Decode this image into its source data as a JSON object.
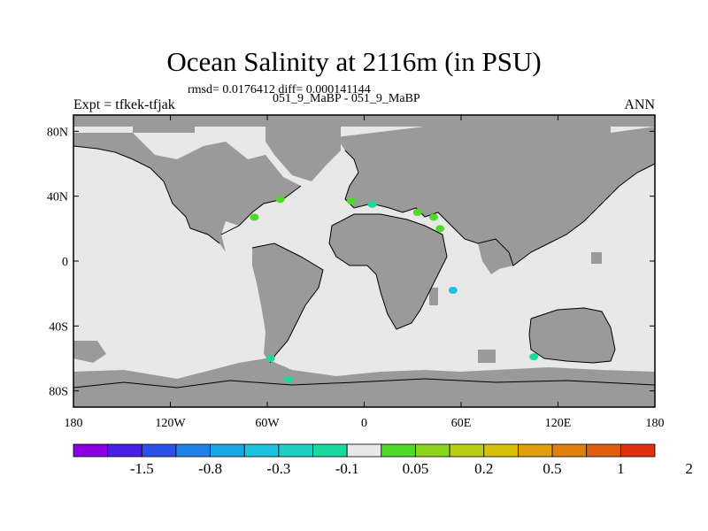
{
  "title": "Ocean Salinity at 2116m (in PSU)",
  "subtitle_stats": "rmsd= 0.0176412 diff= 0.000141144",
  "subtitle_runs": "051_9_MaBP - 051_9_MaBP",
  "expt_label": "Expt = tfkek-tfjak",
  "period_label": "ANN",
  "map": {
    "projection": "cylindrical equidistant",
    "lon_range": [
      -180,
      180
    ],
    "lat_range": [
      -90,
      90
    ],
    "land_color": "#9a9a9a",
    "ocean_color": "#e8e8e8",
    "lon_ticks": [
      {
        "value": -180,
        "label": "180"
      },
      {
        "value": -120,
        "label": "120W"
      },
      {
        "value": -60,
        "label": "60W"
      },
      {
        "value": 0,
        "label": "0"
      },
      {
        "value": 60,
        "label": "60E"
      },
      {
        "value": 120,
        "label": "120E"
      },
      {
        "value": 180,
        "label": "180"
      }
    ],
    "lat_ticks": [
      {
        "value": 80,
        "label": "80N"
      },
      {
        "value": 40,
        "label": "40N"
      },
      {
        "value": 0,
        "label": "0"
      },
      {
        "value": -40,
        "label": "40S"
      },
      {
        "value": -80,
        "label": "80S"
      }
    ]
  },
  "colorbar": {
    "colors": [
      "#8a00e0",
      "#4a1ee6",
      "#2a50e8",
      "#2082e8",
      "#19a8e4",
      "#1bc3de",
      "#1ed0c0",
      "#1bd89e",
      "#e8e8e8",
      "#50d82a",
      "#8cd41e",
      "#b8d012",
      "#d8c008",
      "#e0a00a",
      "#e0800e",
      "#e06010",
      "#e03010"
    ],
    "labels": [
      {
        "after_box": 2,
        "text": "-1.5"
      },
      {
        "after_box": 4,
        "text": "-0.8"
      },
      {
        "after_box": 6,
        "text": "-0.3"
      },
      {
        "after_box": 8,
        "text": "-0.1"
      },
      {
        "after_box": 10,
        "text": "0.05"
      },
      {
        "after_box": 12,
        "text": "0.2"
      },
      {
        "after_box": 14,
        "text": "0.5"
      },
      {
        "after_box": 16,
        "text": "1"
      },
      {
        "after_box": 18,
        "text": "2"
      }
    ]
  },
  "anomalies": [
    {
      "lon": -68,
      "lat": 27,
      "color": "#50d82a"
    },
    {
      "lon": -52,
      "lat": 38,
      "color": "#50d82a"
    },
    {
      "lon": -8,
      "lat": 37,
      "color": "#50d82a"
    },
    {
      "lon": 5,
      "lat": 35,
      "color": "#1bd89e"
    },
    {
      "lon": 33,
      "lat": 30,
      "color": "#50d82a"
    },
    {
      "lon": 43,
      "lat": 27,
      "color": "#50d82a"
    },
    {
      "lon": 47,
      "lat": 20,
      "color": "#50d82a"
    },
    {
      "lon": 55,
      "lat": -18,
      "color": "#1bc3de"
    },
    {
      "lon": -58,
      "lat": -60,
      "color": "#1bd89e"
    },
    {
      "lon": 105,
      "lat": -59,
      "color": "#1bd89e"
    },
    {
      "lon": -47,
      "lat": -73,
      "color": "#1bd89e"
    }
  ]
}
